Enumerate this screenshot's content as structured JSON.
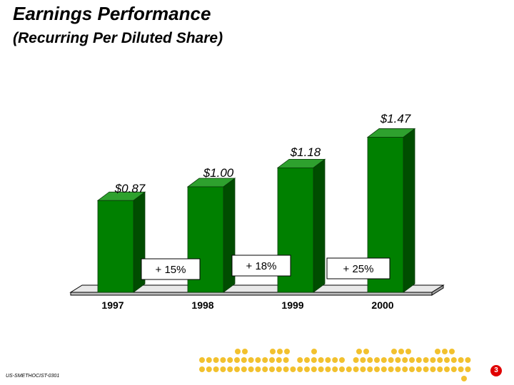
{
  "title": "Earnings Performance",
  "subtitle": "(Recurring Per Diluted Share)",
  "chart_data": {
    "type": "bar",
    "categories": [
      "1997",
      "1998",
      "1999",
      "2000"
    ],
    "values": [
      0.87,
      1.0,
      1.18,
      1.47
    ],
    "value_labels": [
      "$0.87",
      "$1.00",
      "$1.18",
      "$1.47"
    ],
    "growth_labels": [
      "+ 15%",
      "+ 18%",
      "+ 25%"
    ],
    "bar_color": "#008000",
    "xlabel": "",
    "ylabel": "",
    "grid": false
  },
  "footer": {
    "code": "US-SMETHOCIST-0301",
    "page_number": "3"
  },
  "colors": {
    "dots": "#f2c12e",
    "badge": "#e00000"
  }
}
